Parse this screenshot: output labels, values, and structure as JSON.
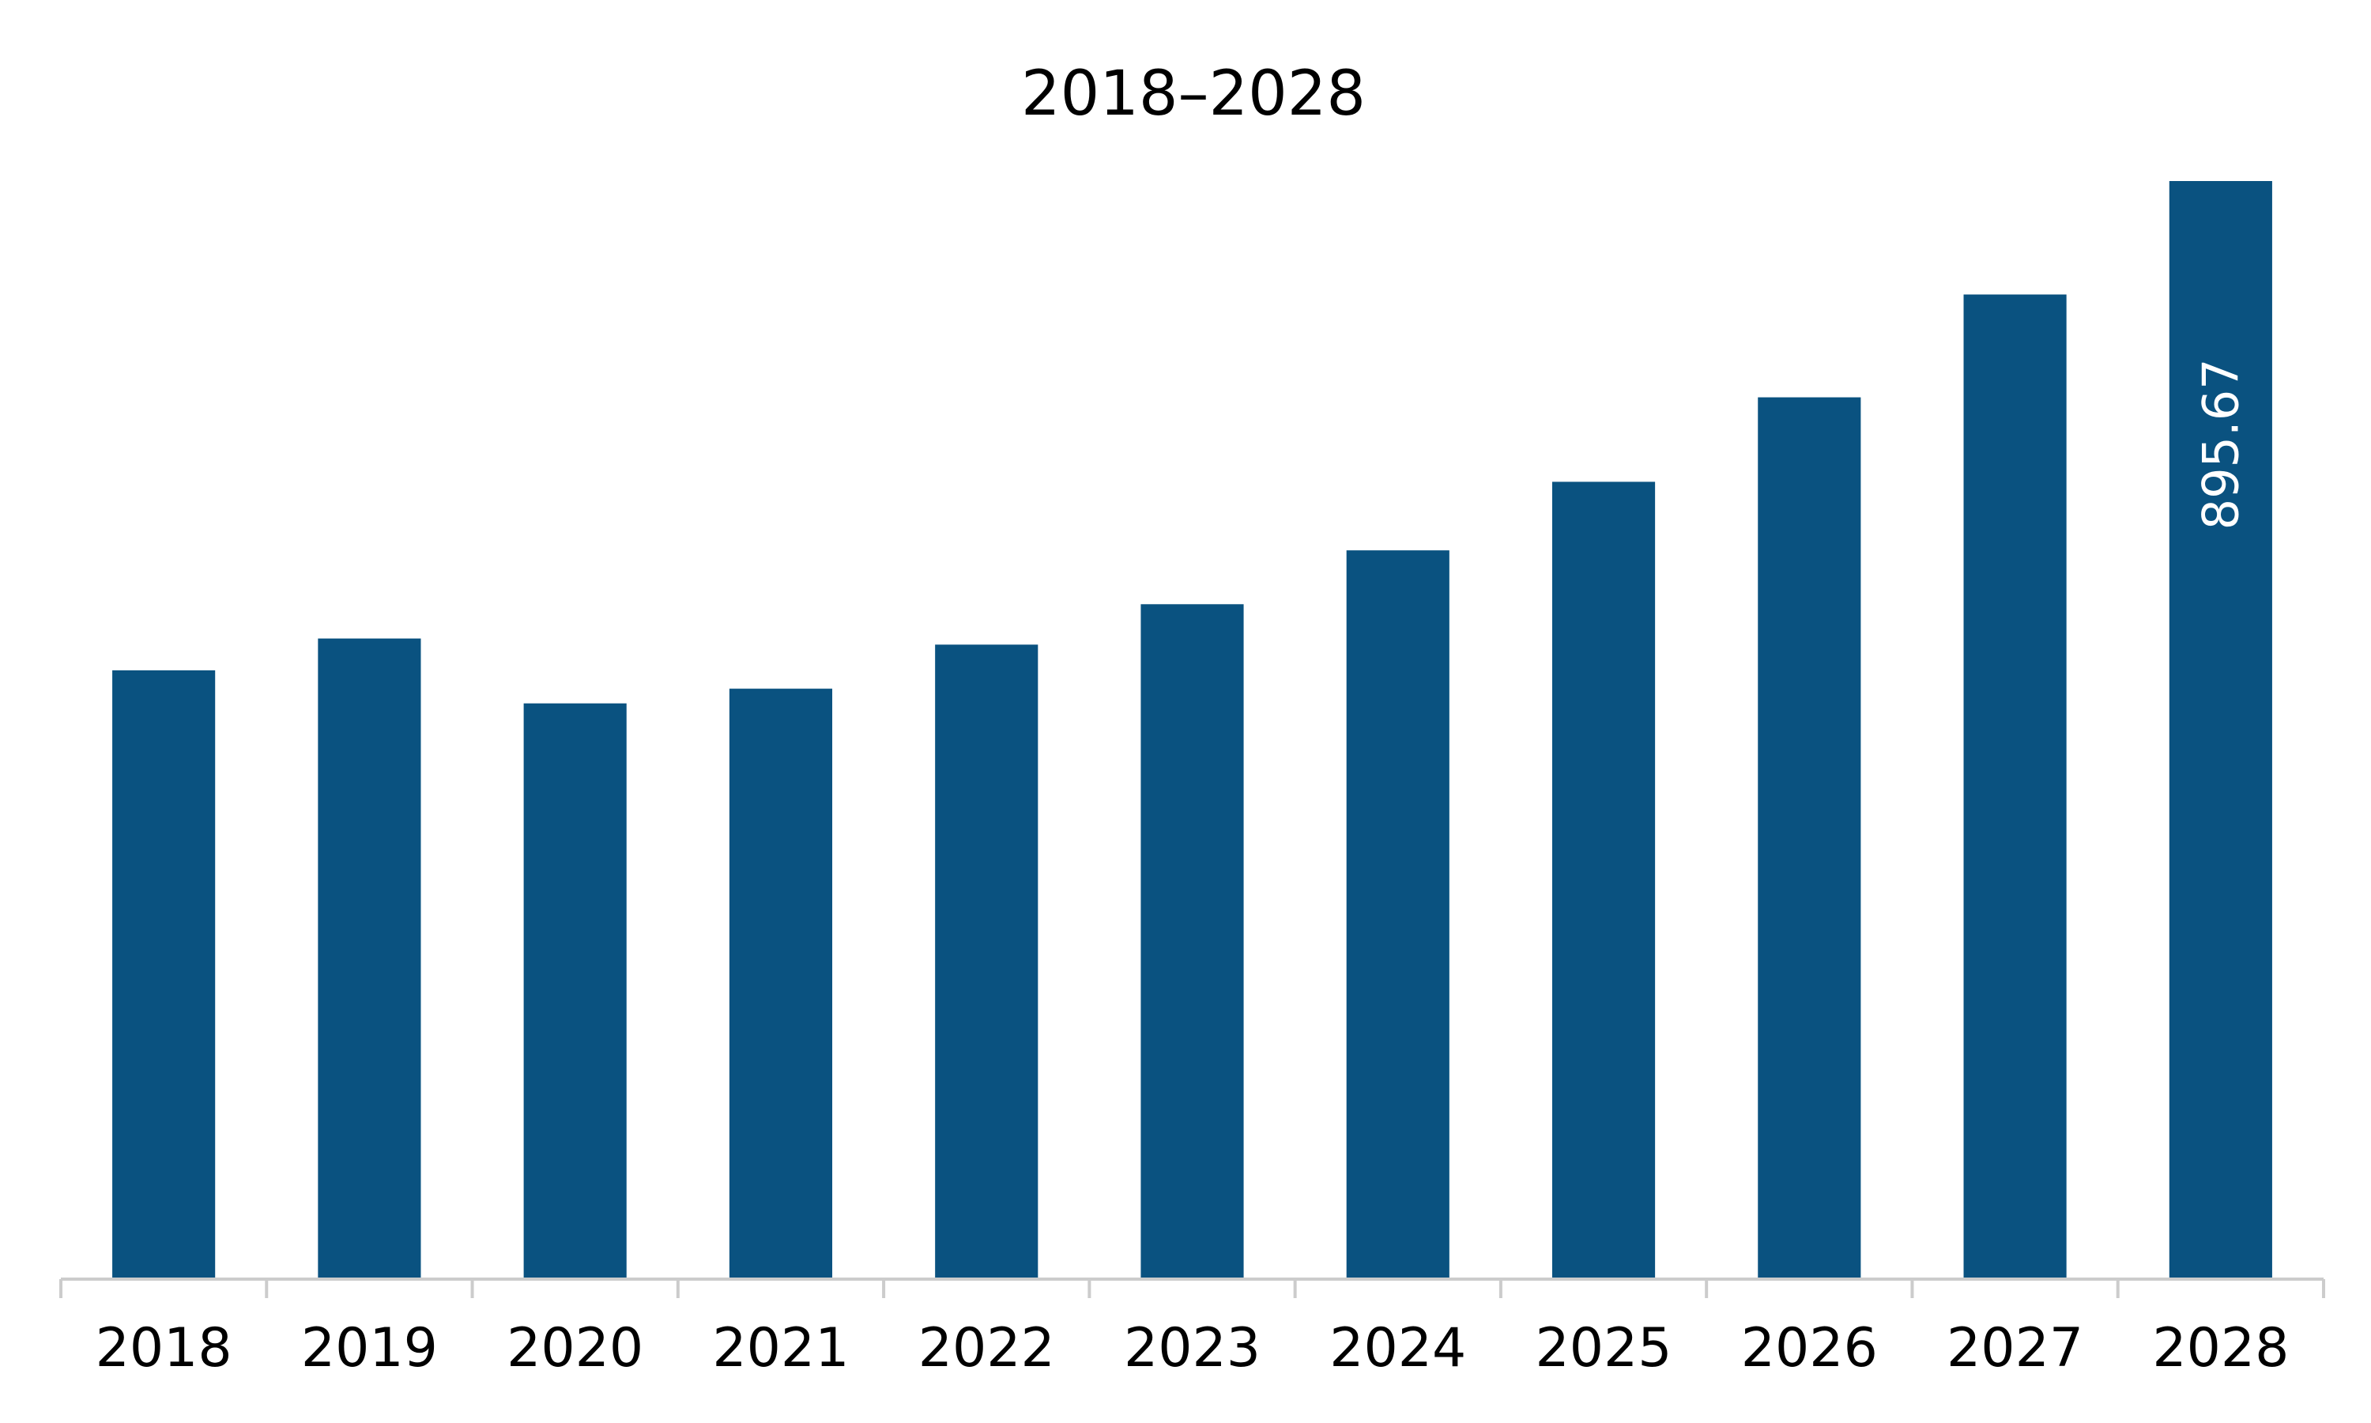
{
  "chart_data": {
    "type": "bar",
    "title": "2018–2028",
    "xlabel": "",
    "ylabel": "",
    "categories": [
      "2018",
      "2019",
      "2020",
      "2021",
      "2022",
      "2023",
      "2024",
      "2025",
      "2026",
      "2027",
      "2028"
    ],
    "values": [
      496,
      522,
      469,
      481,
      517,
      550,
      594,
      650,
      719,
      803,
      895.67
    ],
    "data_labels": [
      {
        "category": "2028",
        "text": "895.67",
        "orientation": "vertical"
      }
    ],
    "ylim": [
      0,
      895.67
    ],
    "grid": false,
    "legend": "none",
    "bar_color": "#0a5280",
    "axis_color": "#cccccc"
  }
}
